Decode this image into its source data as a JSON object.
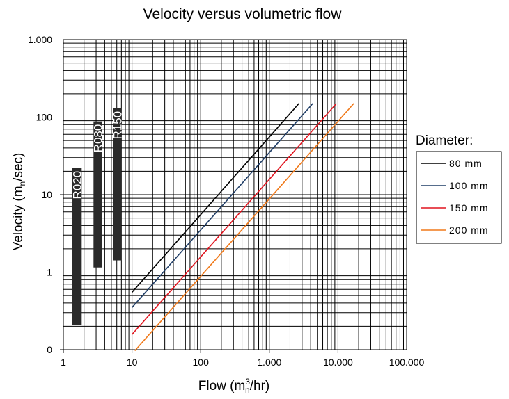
{
  "chart_data": {
    "type": "line",
    "title": "Velocity versus volumetric flow",
    "xlabel": {
      "main": "Flow (m",
      "sup": "3",
      "sub": "n",
      "end": "/hr)"
    },
    "ylabel": {
      "main": "Velocity (m",
      "sub": "n",
      "end": "/sec)"
    },
    "x_scale": "log",
    "y_scale": "log",
    "xlim": [
      1,
      100000
    ],
    "ylim": [
      0.1,
      1000
    ],
    "x_tick_values": [
      1,
      10,
      100,
      1000,
      10000,
      100000
    ],
    "x_tick_labels": [
      "1",
      "10",
      "100",
      "1.000",
      "10.000",
      "100.000"
    ],
    "y_tick_values": [
      0.1,
      1,
      10,
      100,
      1000
    ],
    "y_tick_labels": [
      "0",
      "1",
      "10",
      "100",
      "1.000"
    ],
    "grid": true,
    "legend": {
      "title": "Diameter:",
      "placement": "right",
      "entries": [
        "80  mm",
        "100 mm",
        "150 mm",
        "200 mm"
      ]
    },
    "series": [
      {
        "name": "80  mm",
        "color": "#000000",
        "x": [
          10,
          2700
        ],
        "y": [
          0.55,
          150
        ]
      },
      {
        "name": "100 mm",
        "color": "#1f3d66",
        "x": [
          10,
          4300
        ],
        "y": [
          0.35,
          150
        ]
      },
      {
        "name": "150 mm",
        "color": "#e0141e",
        "x": [
          10,
          9500
        ],
        "y": [
          0.157,
          150
        ]
      },
      {
        "name": "200 mm",
        "color": "#f07818",
        "x": [
          11,
          17000
        ],
        "y": [
          0.097,
          150
        ]
      }
    ],
    "range_bars": [
      {
        "label": "R020",
        "x": [
          1.35,
          1.85
        ],
        "y": [
          0.21,
          22
        ]
      },
      {
        "label": "R080",
        "x": [
          2.75,
          3.65
        ],
        "y": [
          1.15,
          88
        ]
      },
      {
        "label": "R150",
        "x": [
          5.3,
          7.0
        ],
        "y": [
          1.42,
          130
        ]
      }
    ],
    "bar_color": "#2a2a2a"
  }
}
